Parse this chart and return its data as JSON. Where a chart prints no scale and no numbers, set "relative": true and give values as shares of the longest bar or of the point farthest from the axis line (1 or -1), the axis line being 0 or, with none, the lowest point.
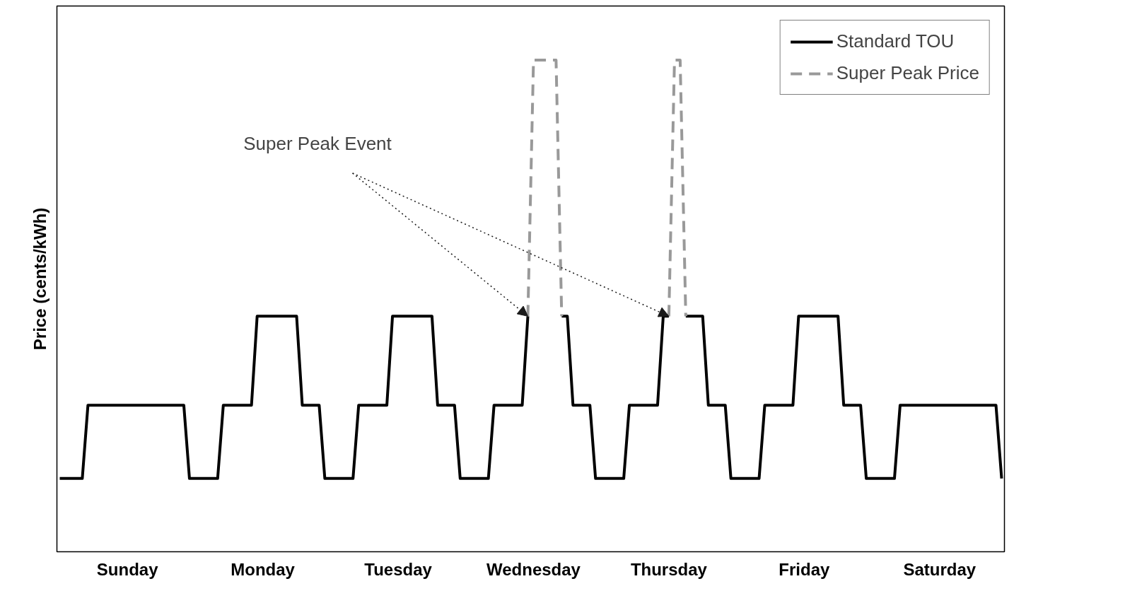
{
  "chart_data": {
    "type": "line",
    "relative": true,
    "ylabel": "Price (cents/kWh)",
    "categories": [
      null,
      null,
      null,
      null,
      null,
      null,
      null,
      null,
      null,
      null,
      null,
      null,
      "Sunday",
      null,
      null,
      null,
      null,
      null,
      null,
      null,
      null,
      null,
      null,
      null,
      null,
      null,
      null,
      null,
      null,
      null,
      null,
      null,
      null,
      null,
      null,
      null,
      "Monday",
      null,
      null,
      null,
      null,
      null,
      null,
      null,
      null,
      null,
      null,
      null,
      null,
      null,
      null,
      null,
      null,
      null,
      null,
      null,
      null,
      null,
      null,
      null,
      "Tuesday",
      null,
      null,
      null,
      null,
      null,
      null,
      null,
      null,
      null,
      null,
      null,
      null,
      null,
      null,
      null,
      null,
      null,
      null,
      null,
      null,
      null,
      null,
      null,
      "Wednesday",
      null,
      null,
      null,
      null,
      null,
      null,
      null,
      null,
      null,
      null,
      null,
      null,
      null,
      null,
      null,
      null,
      null,
      null,
      null,
      null,
      null,
      null,
      null,
      "Thursday",
      null,
      null,
      null,
      null,
      null,
      null,
      null,
      null,
      null,
      null,
      null,
      null,
      null,
      null,
      null,
      null,
      null,
      null,
      null,
      null,
      null,
      null,
      null,
      "Friday",
      null,
      null,
      null,
      null,
      null,
      null,
      null,
      null,
      null,
      null,
      null,
      null,
      null,
      null,
      null,
      null,
      null,
      null,
      null,
      null,
      null,
      null,
      null,
      "Saturday",
      null,
      null,
      null,
      null,
      null,
      null,
      null,
      null,
      null,
      null,
      null
    ],
    "legend": "top right",
    "annotations": [
      "Super Peak Event"
    ],
    "series": [
      {
        "name": "Standard TOU",
        "color": "#000000",
        "line_style": "solid",
        "values": [
          0.149,
          0.149,
          0.149,
          0.149,
          0.149,
          0.298,
          0.298,
          0.298,
          0.298,
          0.298,
          0.298,
          0.298,
          0.298,
          0.298,
          0.298,
          0.298,
          0.298,
          0.298,
          0.298,
          0.298,
          0.298,
          0.298,
          0.298,
          0.149,
          0.149,
          0.149,
          0.149,
          0.149,
          0.149,
          0.298,
          0.298,
          0.298,
          0.298,
          0.298,
          0.298,
          0.479,
          0.479,
          0.479,
          0.479,
          0.479,
          0.479,
          0.479,
          0.479,
          0.298,
          0.298,
          0.298,
          0.298,
          0.149,
          0.149,
          0.149,
          0.149,
          0.149,
          0.149,
          0.298,
          0.298,
          0.298,
          0.298,
          0.298,
          0.298,
          0.479,
          0.479,
          0.479,
          0.479,
          0.479,
          0.479,
          0.479,
          0.479,
          0.298,
          0.298,
          0.298,
          0.298,
          0.149,
          0.149,
          0.149,
          0.149,
          0.149,
          0.149,
          0.298,
          0.298,
          0.298,
          0.298,
          0.298,
          0.298,
          0.479,
          null,
          null,
          null,
          null,
          null,
          0.479,
          0.479,
          0.298,
          0.298,
          0.298,
          0.298,
          0.149,
          0.149,
          0.149,
          0.149,
          0.149,
          0.149,
          0.298,
          0.298,
          0.298,
          0.298,
          0.298,
          0.298,
          0.479,
          0.479,
          null,
          null,
          0.479,
          0.479,
          0.479,
          0.479,
          0.298,
          0.298,
          0.298,
          0.298,
          0.149,
          0.149,
          0.149,
          0.149,
          0.149,
          0.149,
          0.298,
          0.298,
          0.298,
          0.298,
          0.298,
          0.298,
          0.479,
          0.479,
          0.479,
          0.479,
          0.479,
          0.479,
          0.479,
          0.479,
          0.298,
          0.298,
          0.298,
          0.298,
          0.149,
          0.149,
          0.149,
          0.149,
          0.149,
          0.149,
          0.298,
          0.298,
          0.298,
          0.298,
          0.298,
          0.298,
          0.298,
          0.298,
          0.298,
          0.298,
          0.298,
          0.298,
          0.298,
          0.298,
          0.298,
          0.298,
          0.298,
          0.298,
          0.149
        ]
      },
      {
        "name": "Super Peak Price",
        "color": "#999999",
        "line_style": "dashed",
        "values": [
          null,
          null,
          null,
          null,
          null,
          null,
          null,
          null,
          null,
          null,
          null,
          null,
          null,
          null,
          null,
          null,
          null,
          null,
          null,
          null,
          null,
          null,
          null,
          null,
          null,
          null,
          null,
          null,
          null,
          null,
          null,
          null,
          null,
          null,
          null,
          null,
          null,
          null,
          null,
          null,
          null,
          null,
          null,
          null,
          null,
          null,
          null,
          null,
          null,
          null,
          null,
          null,
          null,
          null,
          null,
          null,
          null,
          null,
          null,
          null,
          null,
          null,
          null,
          null,
          null,
          null,
          null,
          null,
          null,
          null,
          null,
          null,
          null,
          null,
          null,
          null,
          null,
          null,
          null,
          null,
          null,
          null,
          null,
          0.479,
          1,
          1,
          1,
          1,
          1,
          0.479,
          null,
          null,
          null,
          null,
          null,
          null,
          null,
          null,
          null,
          null,
          null,
          null,
          null,
          null,
          null,
          null,
          null,
          null,
          0.479,
          1,
          1,
          0.479,
          null,
          null,
          null,
          null,
          null,
          null,
          null,
          null,
          null,
          null,
          null,
          null,
          null,
          null,
          null,
          null,
          null,
          null,
          null,
          null,
          null,
          null,
          null,
          null,
          null,
          null,
          null,
          null,
          null,
          null,
          null,
          null,
          null,
          null,
          null,
          null,
          null,
          null,
          null,
          null,
          null,
          null,
          null,
          null,
          null,
          null,
          null,
          null,
          null,
          null,
          null,
          null,
          null,
          null,
          null,
          null
        ]
      }
    ]
  }
}
